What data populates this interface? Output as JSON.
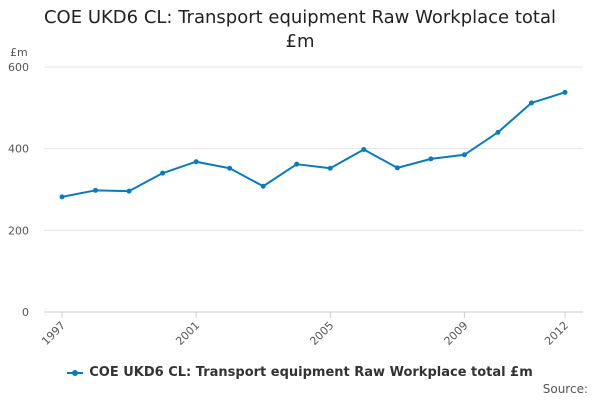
{
  "colors": {
    "series": "#0b7bb8",
    "grid": "#e6e6e6",
    "axis": "#cccccc",
    "text": "#555555"
  },
  "chart_data": {
    "type": "line",
    "title_line1": "COE UKD6 CL: Transport equipment Raw Workplace total",
    "title_line2": "£m",
    "ylabel": "£m",
    "xlabel": "",
    "ylim": [
      0,
      600
    ],
    "yticks": [
      0,
      200,
      400,
      600
    ],
    "xlim": [
      1997,
      2012
    ],
    "xticks": [
      1997,
      2001,
      2005,
      2009,
      2012
    ],
    "grid": true,
    "legend_position": "bottom",
    "series": [
      {
        "name": "COE UKD6 CL: Transport equipment Raw Workplace total £m",
        "x": [
          1997,
          1998,
          1999,
          2000,
          2001,
          2002,
          2003,
          2004,
          2005,
          2006,
          2007,
          2008,
          2009,
          2010,
          2011,
          2012
        ],
        "values": [
          282,
          298,
          296,
          340,
          368,
          352,
          308,
          362,
          352,
          398,
          353,
          375,
          385,
          440,
          512,
          538
        ]
      }
    ]
  },
  "source_label": "Source:"
}
